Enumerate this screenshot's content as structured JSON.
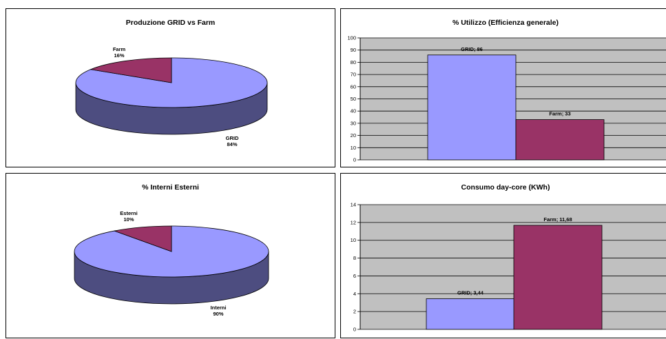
{
  "chart_data": [
    {
      "type": "pie",
      "title": "Produzione GRID vs Farm",
      "slices": [
        {
          "label": "GRID",
          "value": 84,
          "pct_label": "84%",
          "color": "#9999ff",
          "side_color": "#4d4d80"
        },
        {
          "label": "Farm",
          "value": 16,
          "pct_label": "16%",
          "color": "#993366",
          "side_color": "#4d1a33"
        }
      ]
    },
    {
      "type": "bar",
      "title": "% Utilizzo (Efficienza generale)",
      "ylim": [
        0,
        100
      ],
      "yticks": [
        "0",
        "10",
        "20",
        "30",
        "40",
        "50",
        "60",
        "70",
        "80",
        "90",
        "100"
      ],
      "grid": true,
      "plot_bg": "#c0c0c0",
      "bars": [
        {
          "category": "GRID",
          "value": 86,
          "label": "GRID; 86",
          "color": "#9999ff"
        },
        {
          "category": "Farm",
          "value": 33,
          "label": "Farm; 33",
          "color": "#993366"
        }
      ]
    },
    {
      "type": "pie",
      "title": "% Interni Esterni",
      "slices": [
        {
          "label": "Interni",
          "value": 90,
          "pct_label": "90%",
          "color": "#9999ff",
          "side_color": "#4d4d80"
        },
        {
          "label": "Esterni",
          "value": 10,
          "pct_label": "10%",
          "color": "#993366",
          "side_color": "#4d1a33"
        }
      ]
    },
    {
      "type": "bar",
      "title": "Consumo day-core (KWh)",
      "ylim": [
        0,
        14
      ],
      "yticks": [
        "0",
        "2",
        "4",
        "6",
        "8",
        "10",
        "12",
        "14"
      ],
      "grid": true,
      "plot_bg": "#c0c0c0",
      "bars": [
        {
          "category": "GRID",
          "value": 3.44,
          "label": "GRID; 3,44",
          "color": "#9999ff"
        },
        {
          "category": "Farm",
          "value": 11.68,
          "label": "Farm; 11,68",
          "color": "#993366"
        }
      ]
    }
  ]
}
